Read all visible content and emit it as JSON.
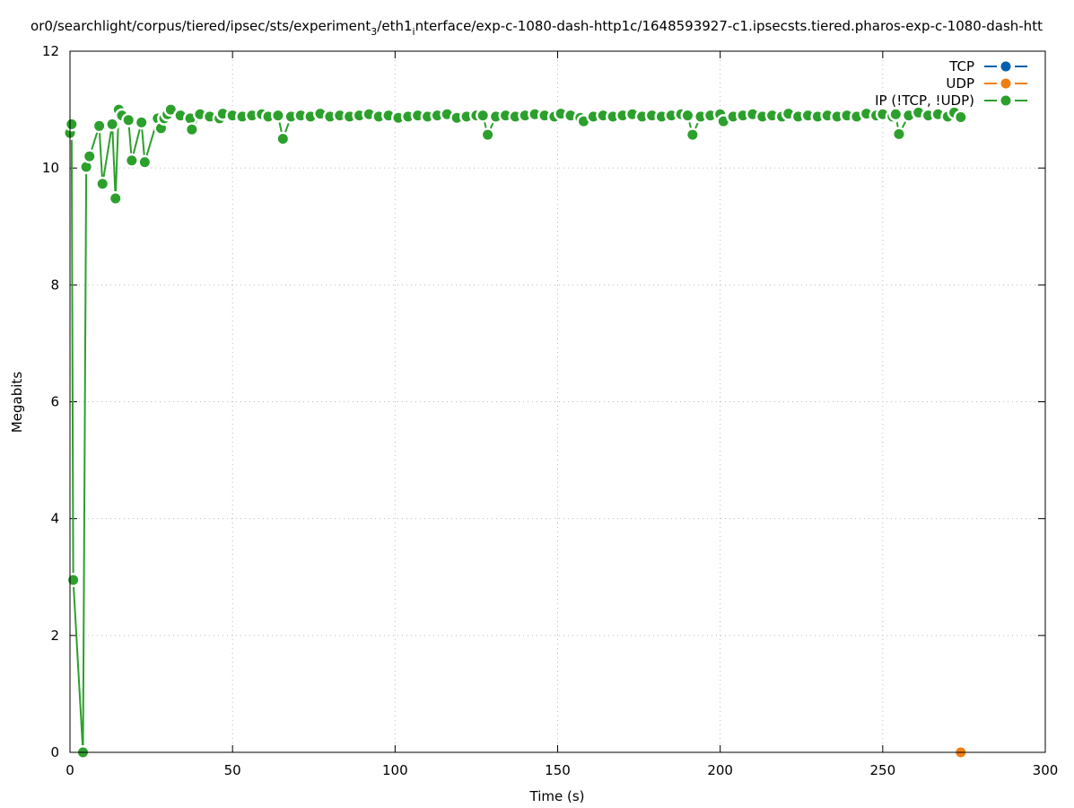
{
  "chart_data": {
    "type": "line",
    "title": {
      "part1": "or0/searchlight/corpus/tiered/ipsec/sts/experiment",
      "sub1": "3",
      "part2": "/eth1",
      "sub2": "i",
      "part3": "nterface/exp-c-1080-dash-http1c/1648593927-c1.ipsecsts.tiered.pharos-exp-c-1080-dash-htt"
    },
    "xlabel": "Time (s)",
    "ylabel": "Megabits",
    "xlim": [
      0,
      300
    ],
    "ylim": [
      0,
      12
    ],
    "xticks": [
      "0",
      "50",
      "100",
      "150",
      "200",
      "250",
      "300"
    ],
    "yticks": [
      "0",
      "2",
      "4",
      "6",
      "8",
      "10",
      "12"
    ],
    "grid": true,
    "legend_position": "top-right",
    "series": [
      {
        "name": "TCP",
        "color": "#0060ad",
        "points": []
      },
      {
        "name": "UDP",
        "color": "#f07f12",
        "points": [
          [
            274,
            0
          ]
        ]
      },
      {
        "name": "IP (!TCP, !UDP)",
        "color": "#2ca02c",
        "points": [
          [
            0,
            10.6
          ],
          [
            0.5,
            10.75
          ],
          [
            1,
            2.95
          ],
          [
            4,
            0
          ],
          [
            5,
            10.02
          ],
          [
            6,
            10.2
          ],
          [
            9,
            10.72
          ],
          [
            10,
            9.73
          ],
          [
            13,
            10.75
          ],
          [
            14,
            9.48
          ],
          [
            15,
            11.0
          ],
          [
            16,
            10.9
          ],
          [
            18,
            10.82
          ],
          [
            19,
            10.13
          ],
          [
            22,
            10.78
          ],
          [
            23,
            10.1
          ],
          [
            27,
            10.85
          ],
          [
            28,
            10.68
          ],
          [
            29,
            10.85
          ],
          [
            30,
            10.92
          ],
          [
            31,
            11.0
          ],
          [
            34,
            10.9
          ],
          [
            37,
            10.85
          ],
          [
            37.5,
            10.66
          ],
          [
            40,
            10.92
          ],
          [
            43,
            10.88
          ],
          [
            46,
            10.85
          ],
          [
            47,
            10.93
          ],
          [
            50,
            10.9
          ],
          [
            53,
            10.88
          ],
          [
            56,
            10.9
          ],
          [
            59,
            10.92
          ],
          [
            61,
            10.88
          ],
          [
            64,
            10.9
          ],
          [
            65.5,
            10.5
          ],
          [
            68,
            10.88
          ],
          [
            71,
            10.9
          ],
          [
            74,
            10.88
          ],
          [
            77,
            10.93
          ],
          [
            80,
            10.88
          ],
          [
            83,
            10.9
          ],
          [
            86,
            10.88
          ],
          [
            89,
            10.9
          ],
          [
            92,
            10.92
          ],
          [
            95,
            10.88
          ],
          [
            98,
            10.9
          ],
          [
            101,
            10.86
          ],
          [
            104,
            10.88
          ],
          [
            107,
            10.9
          ],
          [
            110,
            10.88
          ],
          [
            113,
            10.9
          ],
          [
            116,
            10.92
          ],
          [
            119,
            10.86
          ],
          [
            122,
            10.88
          ],
          [
            125,
            10.9
          ],
          [
            127,
            10.9
          ],
          [
            128.5,
            10.57
          ],
          [
            131,
            10.88
          ],
          [
            134,
            10.9
          ],
          [
            137,
            10.88
          ],
          [
            140,
            10.9
          ],
          [
            143,
            10.92
          ],
          [
            146,
            10.9
          ],
          [
            149,
            10.88
          ],
          [
            151,
            10.93
          ],
          [
            154,
            10.9
          ],
          [
            157,
            10.86
          ],
          [
            158,
            10.8
          ],
          [
            161,
            10.88
          ],
          [
            164,
            10.9
          ],
          [
            167,
            10.88
          ],
          [
            170,
            10.9
          ],
          [
            173,
            10.92
          ],
          [
            176,
            10.88
          ],
          [
            179,
            10.9
          ],
          [
            182,
            10.88
          ],
          [
            185,
            10.9
          ],
          [
            188,
            10.92
          ],
          [
            190,
            10.9
          ],
          [
            191.5,
            10.57
          ],
          [
            194,
            10.88
          ],
          [
            197,
            10.9
          ],
          [
            200,
            10.92
          ],
          [
            201,
            10.8
          ],
          [
            204,
            10.88
          ],
          [
            207,
            10.9
          ],
          [
            210,
            10.92
          ],
          [
            213,
            10.88
          ],
          [
            216,
            10.9
          ],
          [
            219,
            10.88
          ],
          [
            221,
            10.93
          ],
          [
            224,
            10.88
          ],
          [
            227,
            10.9
          ],
          [
            230,
            10.88
          ],
          [
            233,
            10.9
          ],
          [
            236,
            10.88
          ],
          [
            239,
            10.9
          ],
          [
            242,
            10.88
          ],
          [
            245,
            10.93
          ],
          [
            248,
            10.9
          ],
          [
            250,
            10.92
          ],
          [
            253,
            10.88
          ],
          [
            254,
            10.92
          ],
          [
            255,
            10.58
          ],
          [
            258,
            10.9
          ],
          [
            261,
            10.95
          ],
          [
            264,
            10.9
          ],
          [
            267,
            10.92
          ],
          [
            270,
            10.88
          ],
          [
            272,
            10.95
          ],
          [
            274,
            10.87
          ]
        ]
      }
    ]
  }
}
